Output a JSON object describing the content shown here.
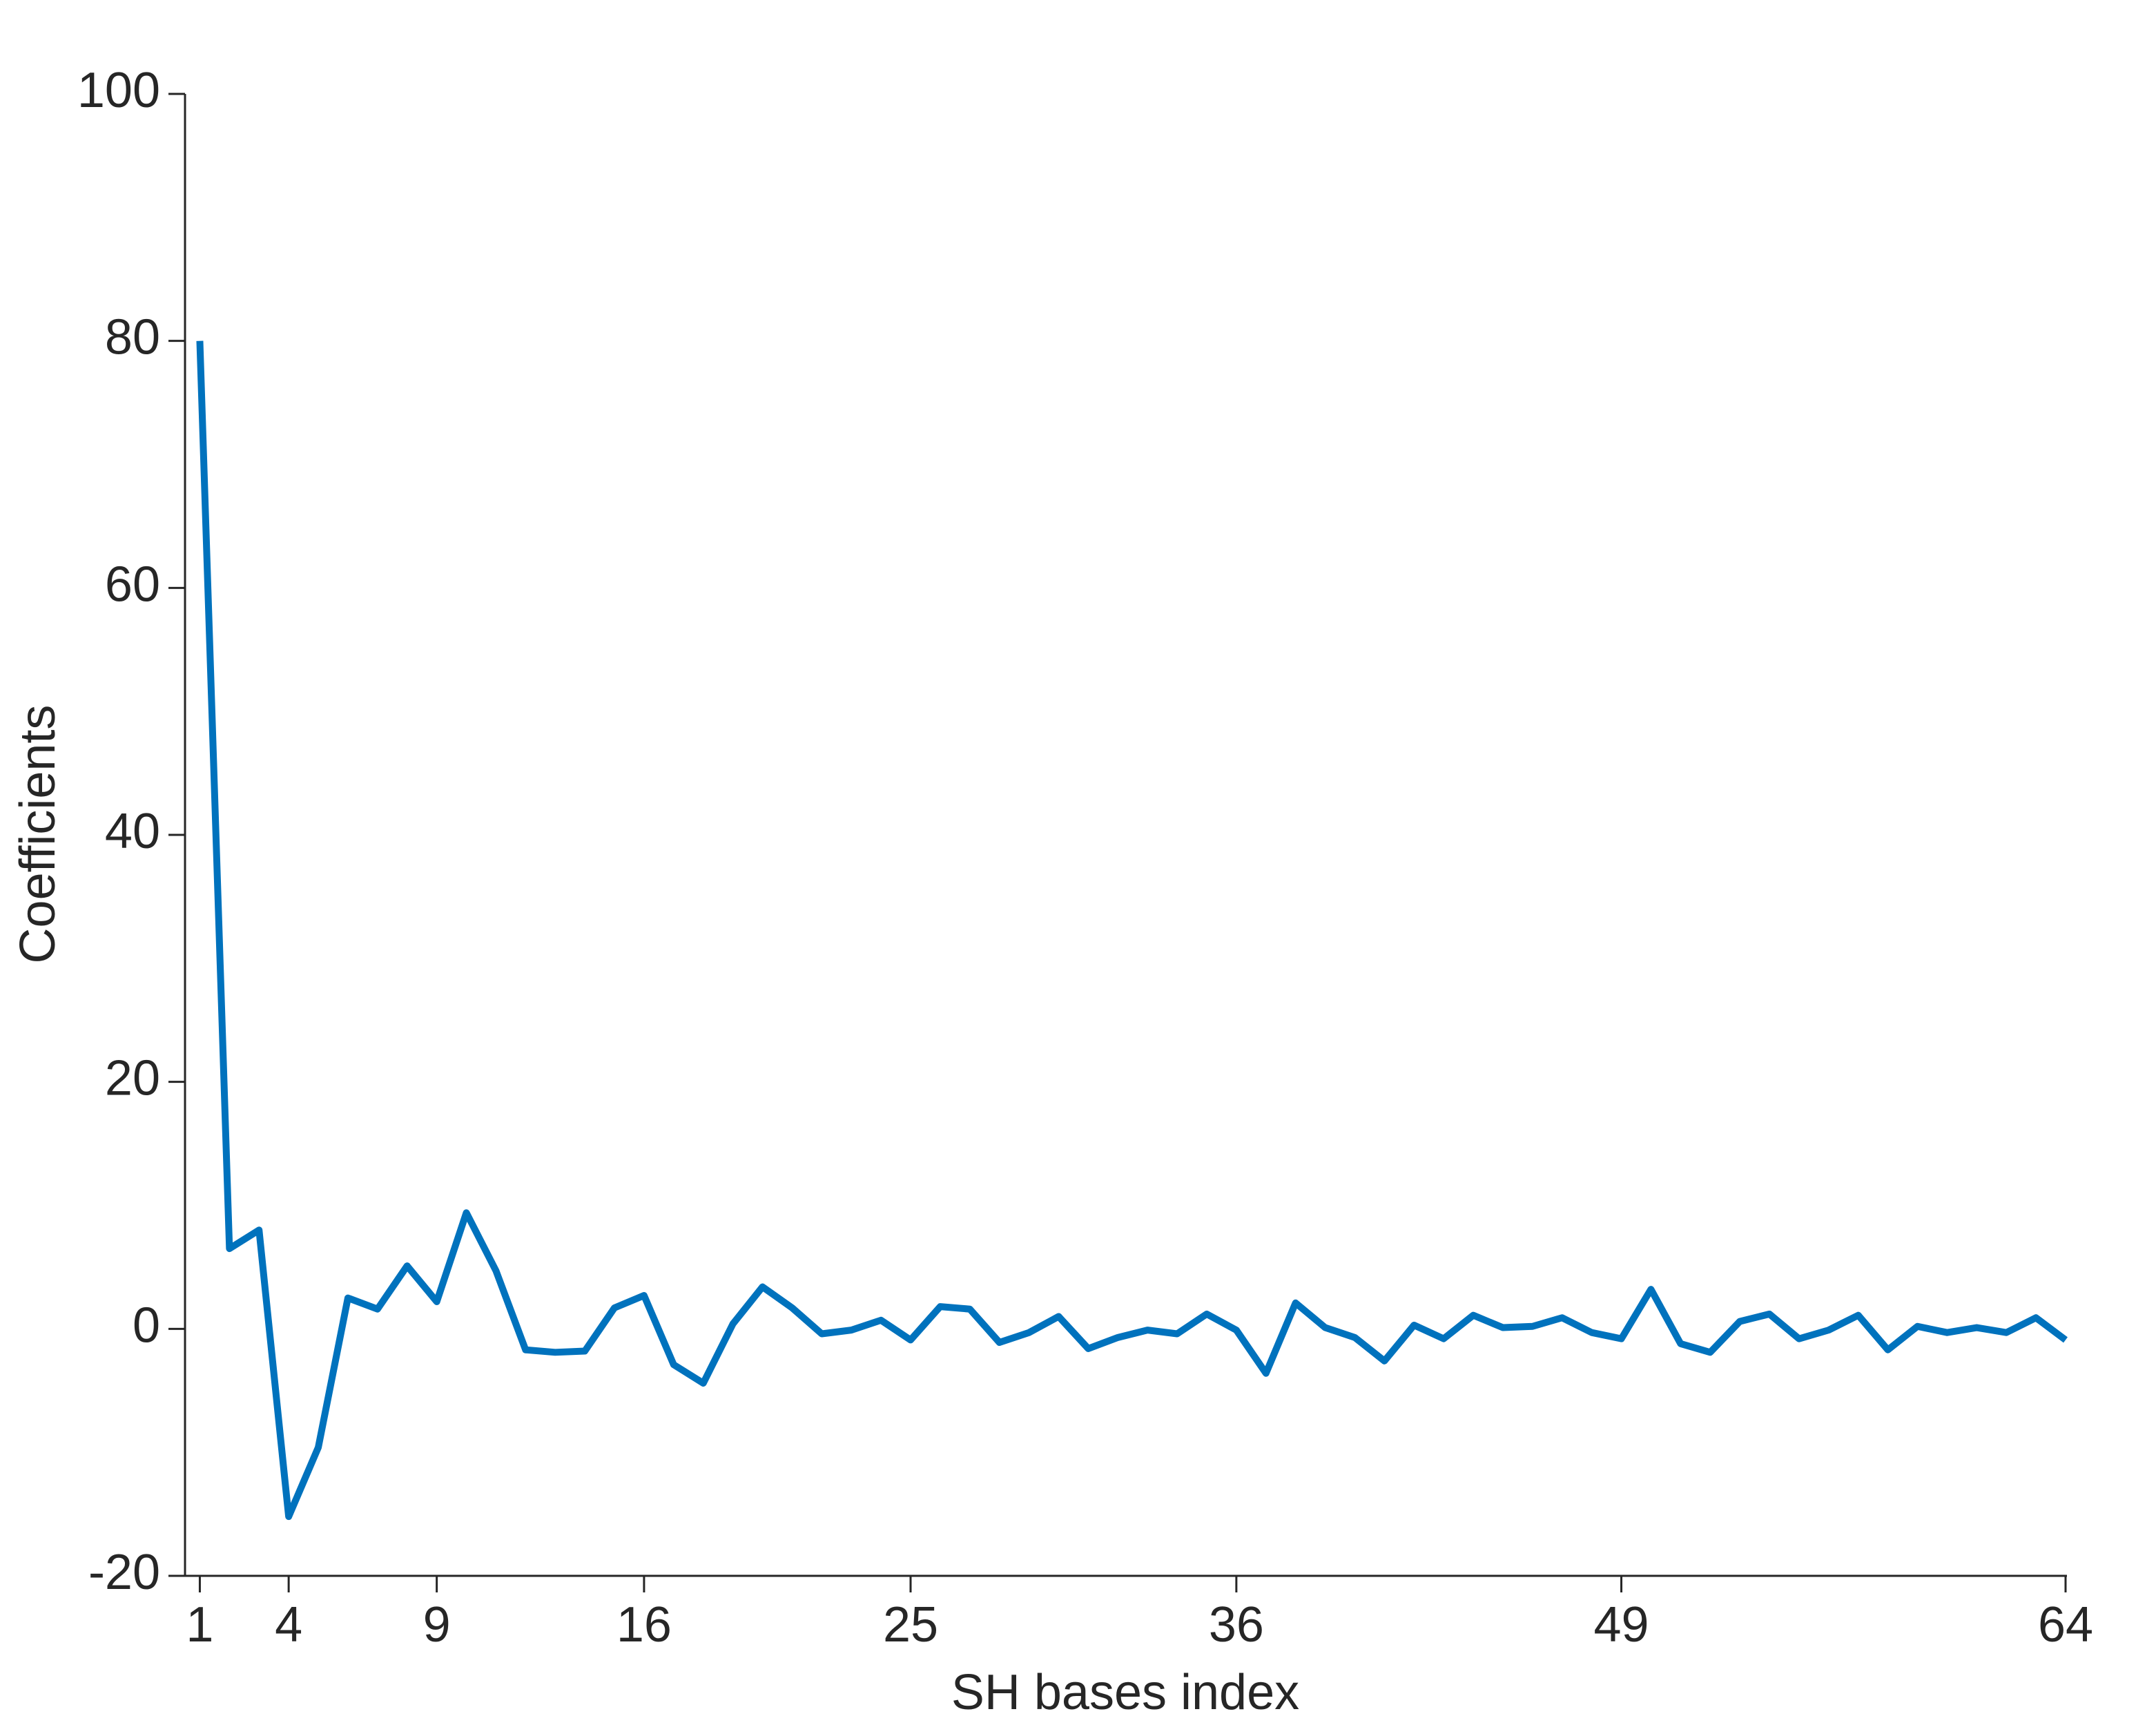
{
  "chart_data": {
    "type": "line",
    "xlabel": "SH bases index",
    "ylabel": "Coefficients",
    "x": [
      1,
      2,
      3,
      4,
      5,
      6,
      7,
      8,
      9,
      10,
      11,
      12,
      13,
      14,
      15,
      16,
      17,
      18,
      19,
      20,
      21,
      22,
      23,
      24,
      25,
      26,
      27,
      28,
      29,
      30,
      31,
      32,
      33,
      34,
      35,
      36,
      37,
      38,
      39,
      40,
      41,
      42,
      43,
      44,
      45,
      46,
      47,
      48,
      49,
      50,
      51,
      52,
      53,
      54,
      55,
      56,
      57,
      58,
      59,
      60,
      61,
      62,
      63,
      64
    ],
    "series": [
      {
        "color": "#0072bd",
        "values": [
          80,
          6.5,
          8,
          -15.2,
          -9.6,
          2.5,
          1.6,
          5.1,
          2.2,
          9.4,
          4.7,
          -1.7,
          -1.9,
          -1.8,
          1.7,
          2.7,
          -2.9,
          -4.4,
          0.4,
          3.4,
          1.7,
          -0.4,
          -0.1,
          0.7,
          -0.9,
          1.8,
          1.6,
          -1.1,
          -0.3,
          1.0,
          -1.6,
          -0.7,
          -0.1,
          -0.4,
          1.2,
          -0.1,
          -3.6,
          2.1,
          0.1,
          -0.7,
          -2.6,
          0.3,
          -0.8,
          1.1,
          0.1,
          0.2,
          0.9,
          -0.3,
          -0.8,
          3.2,
          -1.2,
          -1.9,
          0.6,
          1.2,
          -0.8,
          -0.1,
          1.1,
          -1.7,
          0.2,
          -0.3,
          0.1,
          -0.3,
          0.9,
          -0.9
        ]
      }
    ],
    "xlim": [
      0.5,
      64
    ],
    "xticks": [
      1,
      4,
      9,
      16,
      25,
      36,
      49,
      64
    ],
    "ylim": [
      -20,
      100
    ],
    "yticks": [
      -20,
      0,
      20,
      40,
      60,
      80,
      100
    ]
  }
}
